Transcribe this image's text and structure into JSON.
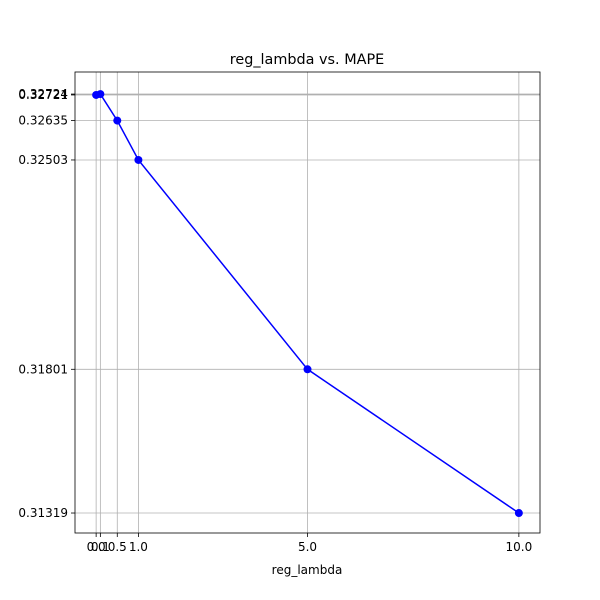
{
  "chart_data": {
    "type": "line",
    "title": "reg_lambda vs. MAPE",
    "xlabel": "reg_lambda",
    "x": [
      0.0,
      0.1,
      0.5,
      1.0,
      5.0,
      10.0
    ],
    "series": [
      {
        "name": "MAPE",
        "color": "#0000ff",
        "values": [
          0.32721,
          0.32724,
          0.32635,
          0.32503,
          0.31801,
          0.31319
        ]
      }
    ],
    "xlim": [
      -0.5,
      10.5
    ],
    "xticks": [
      {
        "value": 0.0,
        "label": "0.0"
      },
      {
        "value": 0.1,
        "label": "0.1"
      },
      {
        "value": 0.5,
        "label": "0.5"
      },
      {
        "value": 1.0,
        "label": "1.0"
      },
      {
        "value": 5.0,
        "label": "5.0"
      },
      {
        "value": 10.0,
        "label": "10.0"
      }
    ],
    "ylim": [
      0.31252,
      0.32798
    ],
    "yticks": [
      0.31319,
      0.31801,
      0.32503,
      0.32635,
      0.32721,
      0.32724
    ],
    "grid": true
  }
}
